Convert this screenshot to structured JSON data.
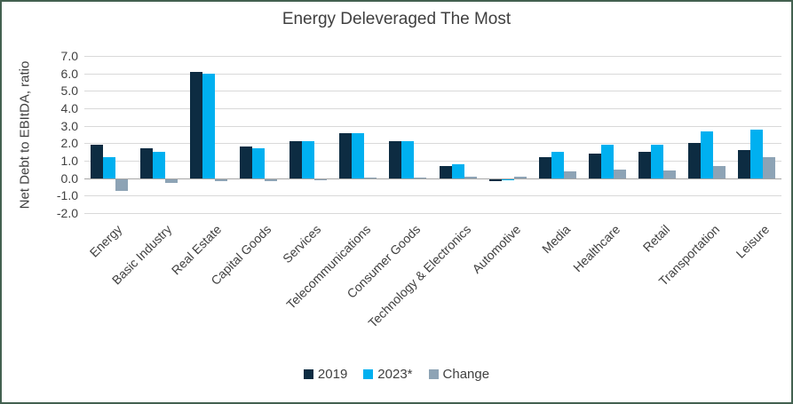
{
  "frame": {
    "border_color": "#436150",
    "background_color": "#ffffff",
    "text_color": "#404040",
    "gridline_color": "#d9d9d9"
  },
  "chart_data": {
    "type": "bar",
    "title": "Energy Deleveraged The Most",
    "xlabel": "",
    "ylabel": "Net Debt to EBItDA, ratio",
    "ylim": [
      -2.0,
      7.0
    ],
    "ytick_step": 1.0,
    "grid": true,
    "legend_position": "bottom",
    "categories": [
      "Energy",
      "Basic Industry",
      "Real Estate",
      "Capital Goods",
      "Services",
      "Telecommunications",
      "Consumer Goods",
      "Technology & Electronics",
      "Automotive",
      "Media",
      "Healthcare",
      "Retail",
      "Transportation",
      "Leisure"
    ],
    "series": [
      {
        "name": "2019",
        "color": "#0d2c42",
        "values": [
          1.9,
          1.7,
          6.1,
          1.8,
          2.1,
          2.6,
          2.1,
          0.7,
          -0.1,
          1.2,
          1.4,
          1.5,
          2.0,
          1.6
        ]
      },
      {
        "name": "2023*",
        "color": "#00b0f0",
        "values": [
          1.2,
          1.5,
          6.0,
          1.7,
          2.1,
          2.6,
          2.1,
          0.8,
          -0.05,
          1.5,
          1.9,
          1.9,
          2.7,
          2.8
        ]
      },
      {
        "name": "Change",
        "color": "#8da3b5",
        "values": [
          -0.7,
          -0.2,
          -0.1,
          -0.1,
          -0.05,
          0.05,
          0.05,
          0.1,
          0.1,
          0.4,
          0.5,
          0.45,
          0.7,
          1.2
        ]
      }
    ]
  }
}
